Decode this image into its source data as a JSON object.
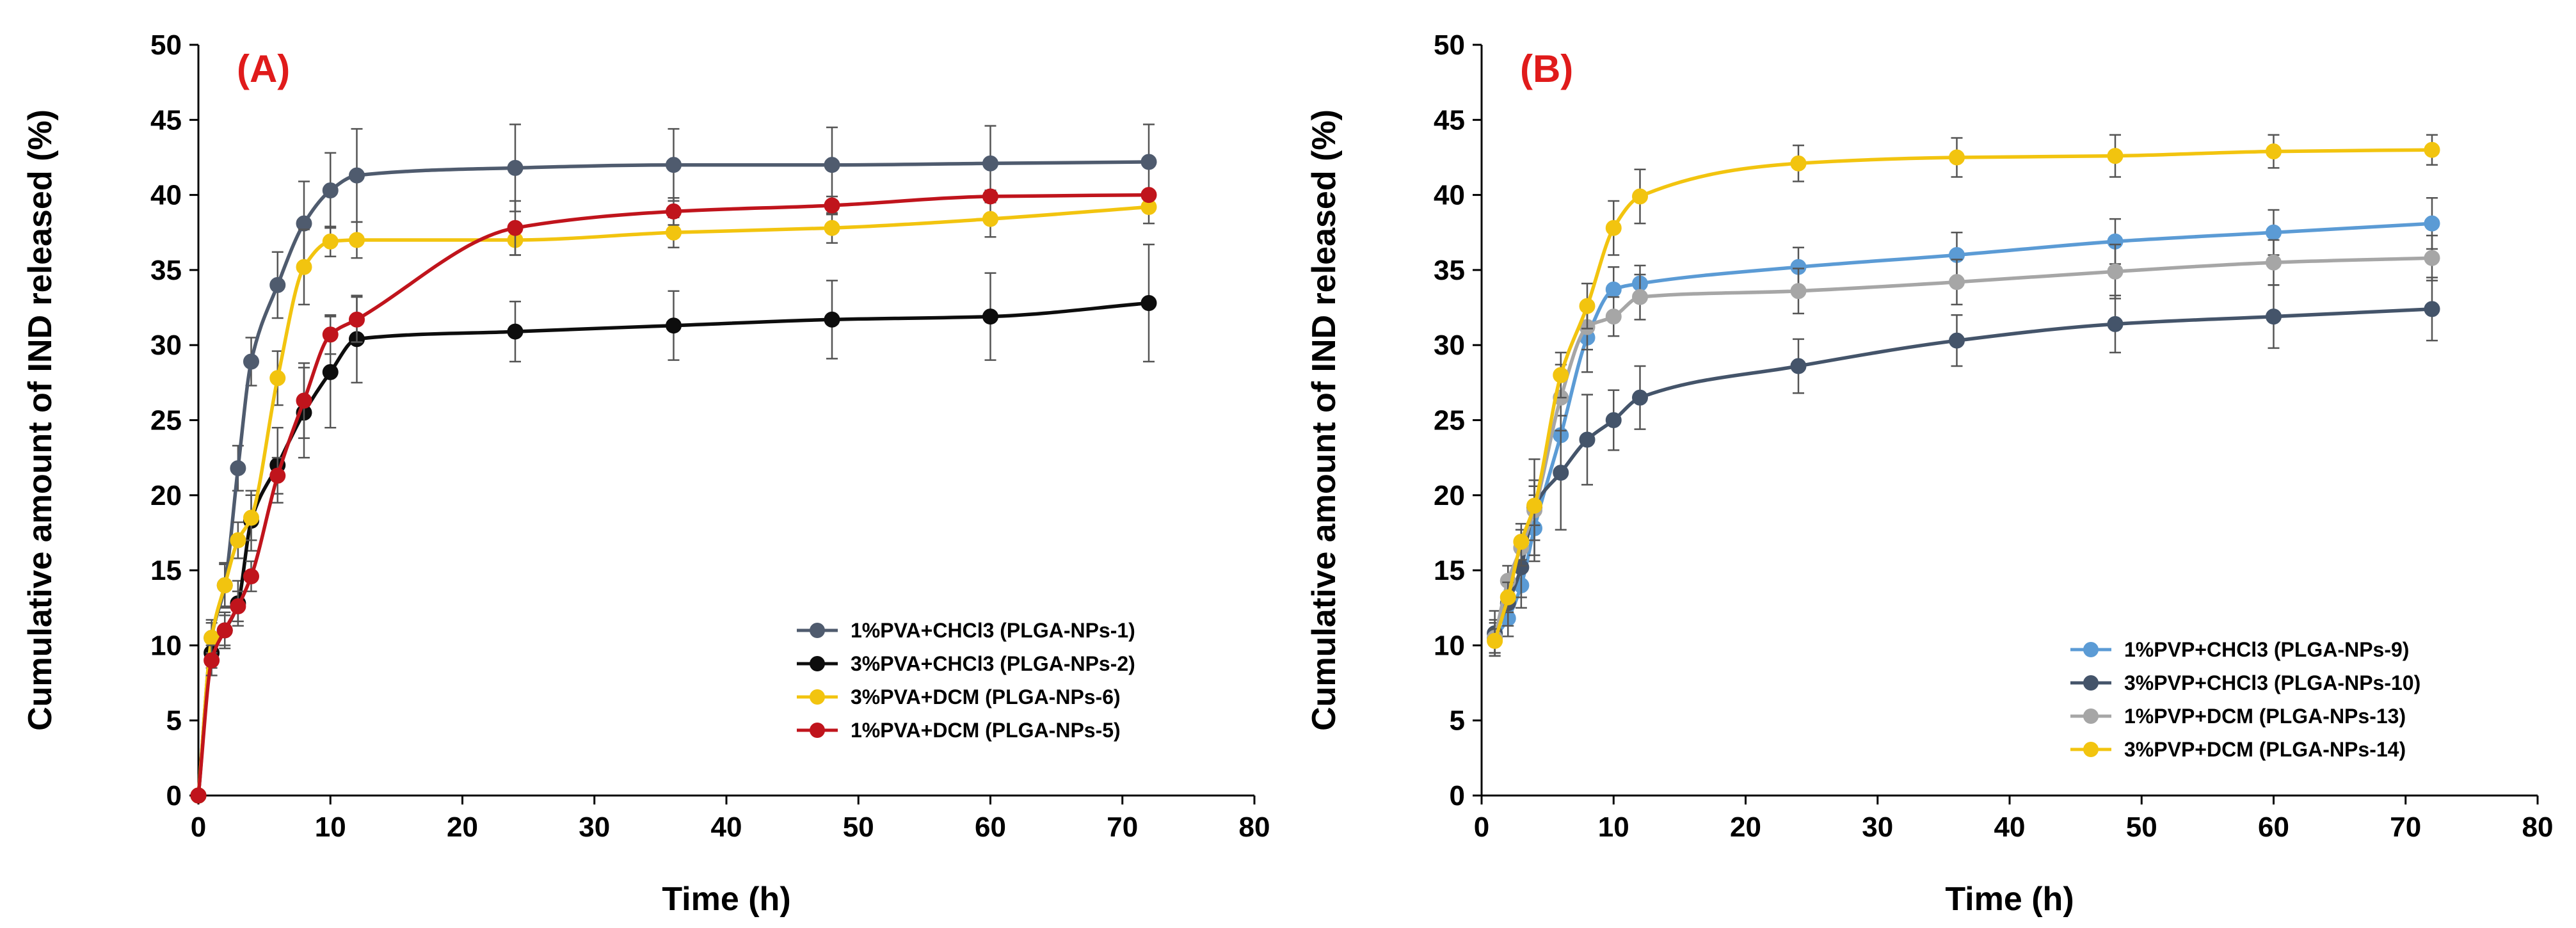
{
  "chart_data": [
    {
      "type": "line",
      "panel_label": "(A)",
      "xlabel": "Time (h)",
      "ylabel": "Cumulative amount of IND released (%)",
      "xlim": [
        0,
        80
      ],
      "ylim": [
        0,
        50
      ],
      "x_ticks": [
        "0",
        "10",
        "20",
        "30",
        "40",
        "50",
        "60",
        "70",
        "80"
      ],
      "y_ticks": [
        "0",
        "5",
        "10",
        "15",
        "20",
        "25",
        "30",
        "35",
        "40",
        "45",
        "50"
      ],
      "legend_position": "bottom-right",
      "series": [
        {
          "name": "1%PVA+CHCl3 (PLGA-NPs-1)",
          "color": "#4f5b6e",
          "x": [
            0,
            1,
            2,
            3,
            4,
            6,
            8,
            10,
            12,
            24,
            36,
            48,
            60,
            72
          ],
          "y": [
            0,
            10.5,
            14.0,
            21.8,
            28.9,
            34.0,
            38.1,
            40.3,
            41.3,
            41.8,
            42.0,
            42.0,
            42.1,
            42.2
          ],
          "err": [
            0,
            1.2,
            1.4,
            1.5,
            1.6,
            2.2,
            2.8,
            2.5,
            3.1,
            2.9,
            2.4,
            2.5,
            2.5,
            2.5
          ]
        },
        {
          "name": "3%PVA+CHCl3 (PLGA-NPs-2)",
          "color": "#0d0d0d",
          "x": [
            0,
            1,
            2,
            3,
            4,
            6,
            8,
            10,
            12,
            24,
            36,
            48,
            60,
            72
          ],
          "y": [
            0,
            9.5,
            11.0,
            12.8,
            18.3,
            22.0,
            25.5,
            28.2,
            30.4,
            30.9,
            31.3,
            31.7,
            31.9,
            32.8
          ],
          "err": [
            0,
            1.0,
            1.2,
            1.5,
            2.0,
            2.5,
            3.0,
            3.7,
            2.9,
            2.0,
            2.3,
            2.6,
            2.9,
            3.9
          ]
        },
        {
          "name": "3%PVA+DCM (PLGA-NPs-6)",
          "color": "#f2c40f",
          "x": [
            0,
            1,
            2,
            3,
            4,
            6,
            8,
            10,
            12,
            24,
            36,
            48,
            60,
            72
          ],
          "y": [
            0,
            10.5,
            14.0,
            17.0,
            18.5,
            27.8,
            35.2,
            36.9,
            37.0,
            37.0,
            37.5,
            37.8,
            38.4,
            39.2
          ],
          "err": [
            0,
            1.0,
            1.5,
            1.2,
            1.5,
            1.8,
            2.5,
            1.0,
            1.2,
            1.0,
            1.0,
            1.0,
            1.2,
            1.1
          ]
        },
        {
          "name": "1%PVA+DCM (PLGA-NPs-5)",
          "color": "#c0141c",
          "x": [
            0,
            1,
            2,
            3,
            4,
            6,
            8,
            10,
            12,
            24,
            36,
            48,
            60,
            72
          ],
          "y": [
            0,
            9.0,
            11.0,
            12.6,
            14.6,
            21.3,
            26.3,
            30.7,
            31.7,
            37.8,
            38.9,
            39.3,
            39.9,
            40.0
          ],
          "err": [
            0,
            1.0,
            1.0,
            1.0,
            1.0,
            1.2,
            2.5,
            1.3,
            1.5,
            1.8,
            0.9,
            0.6,
            0.4,
            0.3
          ]
        }
      ]
    },
    {
      "type": "line",
      "panel_label": "(B)",
      "xlabel": "Time (h)",
      "ylabel": "Cumulative amount of IND released (%)",
      "xlim": [
        0,
        80
      ],
      "ylim": [
        0,
        50
      ],
      "x_ticks": [
        "0",
        "10",
        "20",
        "30",
        "40",
        "50",
        "60",
        "70",
        "80"
      ],
      "y_ticks": [
        "0",
        "5",
        "10",
        "15",
        "20",
        "25",
        "30",
        "35",
        "40",
        "45",
        "50"
      ],
      "legend_position": "bottom-right",
      "series": [
        {
          "name": "1%PVP+CHCl3 (PLGA-NPs-9)",
          "color": "#5b9bd5",
          "x": [
            1,
            2,
            3,
            4,
            6,
            8,
            10,
            12,
            24,
            36,
            48,
            60,
            72
          ],
          "y": [
            10.5,
            11.8,
            14.0,
            17.8,
            24.0,
            30.5,
            33.7,
            34.1,
            35.2,
            36.0,
            36.9,
            37.5,
            38.1
          ],
          "err": [
            1.2,
            1.2,
            1.5,
            2.2,
            2.5,
            2.3,
            1.5,
            1.2,
            1.3,
            1.5,
            1.5,
            1.5,
            1.7
          ]
        },
        {
          "name": "3%PVP+CHCl3 (PLGA-NPs-10)",
          "color": "#44546a",
          "x": [
            1,
            2,
            3,
            4,
            6,
            8,
            10,
            12,
            24,
            36,
            48,
            60,
            72
          ],
          "y": [
            10.8,
            12.8,
            15.2,
            19.2,
            21.5,
            23.7,
            25.0,
            26.5,
            28.6,
            30.3,
            31.4,
            31.9,
            32.4
          ],
          "err": [
            1.5,
            1.5,
            2.0,
            3.2,
            3.8,
            3.0,
            2.0,
            2.1,
            1.8,
            1.7,
            1.9,
            2.1,
            2.1
          ]
        },
        {
          "name": "1%PVP+DCM (PLGA-NPs-13)",
          "color": "#a6a6a6",
          "x": [
            1,
            2,
            3,
            4,
            6,
            8,
            10,
            12,
            24,
            36,
            48,
            60,
            72
          ],
          "y": [
            10.5,
            14.3,
            16.5,
            19.0,
            26.5,
            31.2,
            31.9,
            33.2,
            33.6,
            34.2,
            34.9,
            35.5,
            35.8
          ],
          "err": [
            1.0,
            1.0,
            1.2,
            2.0,
            2.2,
            1.5,
            1.3,
            1.5,
            1.5,
            1.5,
            1.8,
            1.5,
            1.5
          ]
        },
        {
          "name": "3%PVP+DCM (PLGA-NPs-14)",
          "color": "#f2c40f",
          "x": [
            1,
            2,
            3,
            4,
            6,
            8,
            10,
            12,
            24,
            36,
            48,
            60,
            72
          ],
          "y": [
            10.3,
            13.2,
            16.9,
            19.3,
            28.0,
            32.6,
            37.8,
            39.9,
            42.1,
            42.5,
            42.6,
            42.9,
            43.0
          ],
          "err": [
            0.8,
            1.0,
            1.2,
            1.3,
            1.5,
            1.5,
            1.8,
            1.8,
            1.2,
            1.3,
            1.4,
            1.1,
            1.0
          ]
        }
      ]
    }
  ]
}
